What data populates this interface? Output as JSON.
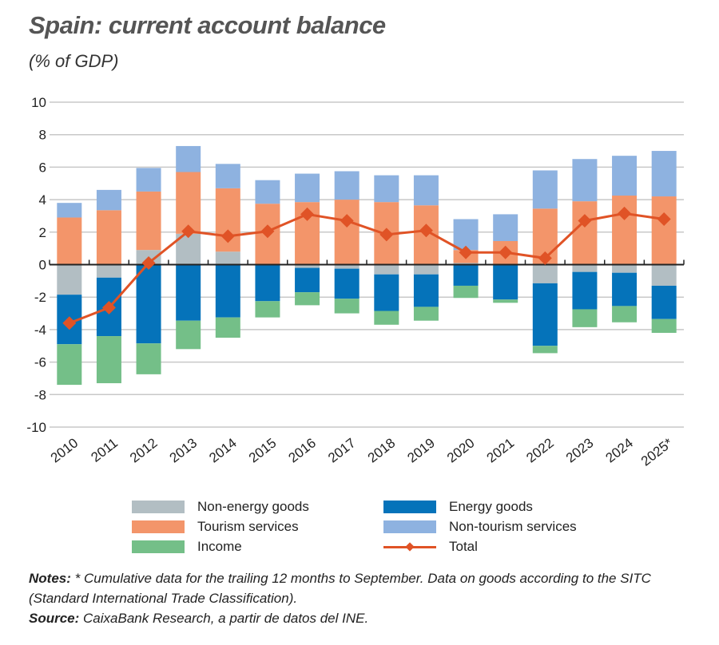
{
  "title": "Spain: current account balance",
  "subtitle": "(% of GDP)",
  "notes_label": "Notes:",
  "notes_text": " * Cumulative data for the trailing 12 months to September. Data on goods according to the SITC (Standard International Trade Classification).",
  "source_label": "Source:",
  "source_text": " CaixaBank Research, a partir de datos del INE.",
  "chart_data": {
    "type": "bar",
    "stacked": true,
    "title": "Spain: current account balance",
    "ylabel": "(% of GDP)",
    "ylim": [
      -10,
      10
    ],
    "yticks": [
      10,
      8,
      6,
      4,
      2,
      0,
      -2,
      -4,
      -6,
      -8,
      -10
    ],
    "grid": true,
    "legend_placement": "bottom",
    "categories": [
      "2010",
      "2011",
      "2012",
      "2013",
      "2014",
      "2015",
      "2016",
      "2017",
      "2018",
      "2019",
      "2020",
      "2021",
      "2022",
      "2023",
      "2024",
      "2025*"
    ],
    "series": [
      {
        "name": "Non-energy goods",
        "type": "bar",
        "color": "#b2bec3",
        "values": [
          -1.85,
          -0.8,
          0.9,
          1.9,
          0.8,
          -0.05,
          -0.2,
          -0.25,
          -0.6,
          -0.6,
          0.1,
          -0.05,
          -1.15,
          -0.45,
          -0.5,
          -1.3
        ]
      },
      {
        "name": "Tourism services",
        "type": "bar",
        "color": "#f3956a",
        "values": [
          2.9,
          3.35,
          3.6,
          3.8,
          3.9,
          3.75,
          3.85,
          4.0,
          3.85,
          3.65,
          0.8,
          1.45,
          3.45,
          3.9,
          4.25,
          4.2
        ]
      },
      {
        "name": "Non-tourism services",
        "type": "bar",
        "color": "#8eb2e0",
        "values": [
          0.9,
          1.25,
          1.45,
          1.6,
          1.5,
          1.45,
          1.75,
          1.75,
          1.65,
          1.85,
          1.9,
          1.65,
          2.35,
          2.6,
          2.45,
          2.8
        ]
      },
      {
        "name": "Energy goods",
        "type": "bar",
        "color": "#0573ba",
        "values": [
          -3.05,
          -3.6,
          -4.85,
          -3.45,
          -3.25,
          -2.2,
          -1.5,
          -1.85,
          -2.25,
          -2.0,
          -1.3,
          -2.1,
          -3.85,
          -2.3,
          -2.05,
          -2.05
        ]
      },
      {
        "name": "Income",
        "type": "bar",
        "color": "#74bf88",
        "values": [
          -2.5,
          -2.9,
          -1.9,
          -1.75,
          -1.25,
          -1.0,
          -0.8,
          -0.9,
          -0.85,
          -0.85,
          -0.75,
          -0.2,
          -0.45,
          -1.1,
          -1.0,
          -0.85
        ]
      },
      {
        "name": "Total",
        "type": "line",
        "color": "#e05326",
        "values": [
          -3.6,
          -2.65,
          0.1,
          2.05,
          1.75,
          2.05,
          3.1,
          2.7,
          1.85,
          2.1,
          0.75,
          0.75,
          0.4,
          2.7,
          3.15,
          2.8
        ]
      }
    ],
    "legend_order": [
      "Non-energy goods",
      "Energy goods",
      "Tourism services",
      "Non-tourism services",
      "Income",
      "Total"
    ]
  }
}
